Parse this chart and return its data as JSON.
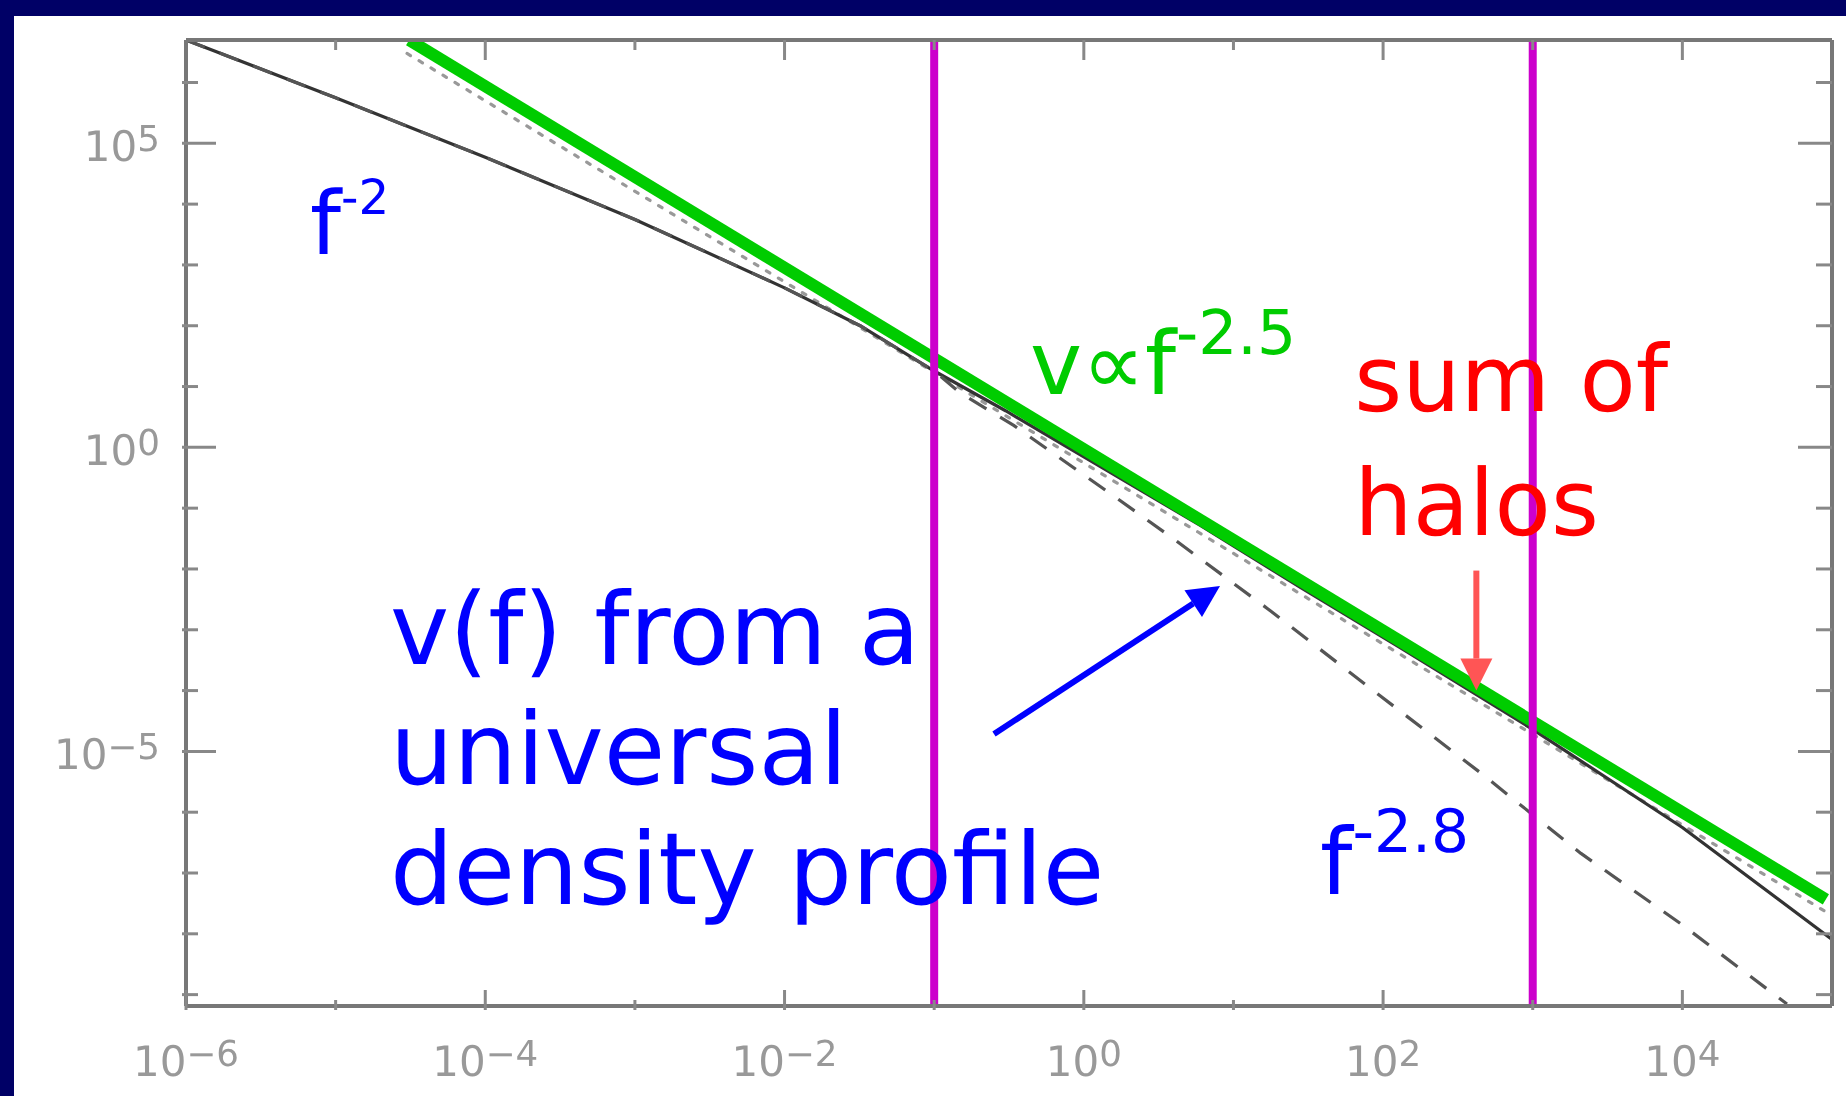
{
  "chart_data": {
    "type": "line",
    "series": [
      {
        "x": [
          3e-05,
          100000.0
        ],
        "values": [
          3000000.0,
          2e-08
        ],
        "color": "#999999",
        "line_style": "dotted"
      },
      {
        "x": [
          1e-06,
          1e-05,
          0.0001,
          0.001,
          0.01,
          0.032,
          0.1,
          0.3,
          6,
          28,
          130,
          1000,
          10000.0,
          100000.0
        ],
        "values": [
          5000000.0,
          560000.0,
          59000.0,
          5600,
          420,
          100,
          18,
          4,
          0.052,
          0.005,
          0.00051,
          2.3e-05,
          5.6e-07,
          8.1e-09
        ],
        "color": "#333333",
        "line_style": "solid"
      },
      {
        "x": [
          1e-06,
          1e-05,
          0.0001,
          0.001,
          0.01,
          0.032,
          0.1,
          0.15,
          0.34,
          1.7,
          4,
          17,
          95,
          450,
          2100,
          10000.0,
          50000.0
        ],
        "values": [
          5000000.0,
          560000.0,
          59000.0,
          5600,
          420,
          100,
          18,
          7.8,
          2.3,
          0.14,
          0.031,
          0.0022,
          8.3e-05,
          4.4e-06,
          2.1e-07,
          1.4e-08,
          7e-10
        ],
        "color": "#555555",
        "line_style": "dashed"
      },
      {
        "x": [
          3.1e-05,
          91000.0
        ],
        "values": [
          5000000.0,
          3.7e-08
        ],
        "color": "#00cc00",
        "line_style": "solid"
      }
    ],
    "xlim": [
      1e-06,
      100000.0
    ],
    "ylim": [
      6.5e-10,
      5000000.0
    ],
    "xticks": [
      {
        "value": 1e-06,
        "label": "10$^{−6}$"
      },
      {
        "value": 1e-05,
        "label": null
      },
      {
        "value": 0.0001,
        "label": "10$^{−4}$"
      },
      {
        "value": 0.001,
        "label": null
      },
      {
        "value": 0.01,
        "label": "10$^{−2}$"
      },
      {
        "value": 0.1,
        "label": null
      },
      {
        "value": 1,
        "label": "10$^{0}$"
      },
      {
        "value": 10,
        "label": null
      },
      {
        "value": 100,
        "label": "10$^{2}$"
      },
      {
        "value": 1000,
        "label": null
      },
      {
        "value": 10000.0,
        "label": "10$^{4}$"
      }
    ],
    "yticks": [
      {
        "value": 1e-09,
        "label": null
      },
      {
        "value": 1e-08,
        "label": null
      },
      {
        "value": 1e-07,
        "label": null
      },
      {
        "value": 1e-06,
        "label": null
      },
      {
        "value": 1e-05,
        "label": "10$^{−5}$"
      },
      {
        "value": 0.0001,
        "label": null
      },
      {
        "value": 0.001,
        "label": null
      },
      {
        "value": 0.01,
        "label": null
      },
      {
        "value": 0.1,
        "label": null
      },
      {
        "value": 1,
        "label": "10$^{0}$"
      },
      {
        "value": 10,
        "label": null
      },
      {
        "value": 100,
        "label": null
      },
      {
        "value": 1000,
        "label": null
      },
      {
        "value": 10000.0,
        "label": null
      },
      {
        "value": 100000.0,
        "label": "10$^{5}$"
      },
      {
        "value": 1000000.0,
        "label": null
      }
    ],
    "log": "xy",
    "ref_lines": [
      {
        "axis": "x",
        "value": 0.1,
        "color": "#cc00cc"
      },
      {
        "axis": "x",
        "value": 1000,
        "color": "#cc00cc"
      }
    ],
    "annotations": [
      "f$^{-2}$",
      "v∝f$^{-2.5}$",
      {
        "text": "sum of halos",
        "x": 420,
        "y": 0.0001
      },
      "v(f) from a universal density profile",
      "f$^{-2.8}$"
    ]
  }
}
